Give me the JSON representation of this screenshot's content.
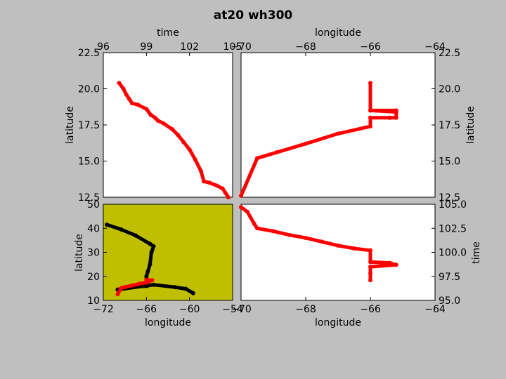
{
  "title": "at20 wh300",
  "colors": {
    "background": "#bfbfbf",
    "track": "#ff0000",
    "secondary_track": "#000000",
    "map_background": "#bfbf00"
  },
  "chart_data": [
    {
      "name": "latitude-vs-time",
      "type": "scatter",
      "xlabel": "time",
      "ylabel": "latitude",
      "xlim": [
        96,
        105
      ],
      "ylim": [
        12.5,
        22.5
      ],
      "xticks": [
        "96",
        "99",
        "102",
        "105"
      ],
      "yticks": [
        "12.5",
        "15.0",
        "17.5",
        "20.0",
        "22.5"
      ],
      "series": [
        {
          "color": "#ff0000",
          "x": [
            97.1,
            97.4,
            97.6,
            97.8,
            98.0,
            98.4,
            99.0,
            99.3,
            99.6,
            99.8,
            100.2,
            100.8,
            101.2,
            101.6,
            102.0,
            102.4,
            102.8,
            103.0,
            103.4,
            103.9,
            104.3,
            104.5,
            104.7
          ],
          "y": [
            20.4,
            20.0,
            19.6,
            19.3,
            19.0,
            18.9,
            18.6,
            18.2,
            18.0,
            17.8,
            17.6,
            17.2,
            16.8,
            16.3,
            15.8,
            15.1,
            14.3,
            13.6,
            13.5,
            13.3,
            13.1,
            12.8,
            12.5
          ]
        }
      ]
    },
    {
      "name": "latitude-vs-longitude",
      "type": "line",
      "xlabel": "longitude",
      "ylabel": "latitude",
      "xlim": [
        -70,
        -64
      ],
      "ylim": [
        12.5,
        22.5
      ],
      "xticks": [
        "−70",
        "−68",
        "−66",
        "−64"
      ],
      "yticks": [
        "12.5",
        "15.0",
        "17.5",
        "20.0",
        "22.5"
      ],
      "series": [
        {
          "color": "#ff0000",
          "x": [
            -70.0,
            -69.5,
            -68.9,
            -68.0,
            -67.0,
            -66.0,
            -66.0,
            -65.4,
            -65.4,
            -65.2,
            -65.2,
            -66.0,
            -66.0,
            -65.2,
            -65.2,
            -66.0,
            -66.0
          ],
          "y": [
            12.6,
            15.2,
            15.6,
            16.2,
            16.9,
            17.4,
            18.0,
            18.0,
            18.0,
            18.0,
            18.4,
            18.5,
            18.5,
            18.5,
            18.4,
            18.5,
            20.4
          ]
        }
      ]
    },
    {
      "name": "map-latitude-vs-longitude",
      "type": "scatter",
      "xlabel": "longitude",
      "ylabel": "latitude",
      "xlim": [
        -72,
        -54
      ],
      "ylim": [
        10,
        50
      ],
      "xticks": [
        "−72",
        "−66",
        "−60",
        "−54"
      ],
      "yticks": [
        "10",
        "20",
        "30",
        "40",
        "50"
      ],
      "series": [
        {
          "color": "#000000",
          "x": [
            -71.5,
            -69.5,
            -67.5,
            -65.5,
            -65.0,
            -65.3,
            -65.5,
            -65.8,
            -66.0,
            -66.0,
            -65.9,
            -68.0,
            -69.0,
            -70.0,
            -65.0,
            -62.0,
            -60.5,
            -59.5
          ],
          "y": [
            41.5,
            39.5,
            37.0,
            33.5,
            32.5,
            30.0,
            25.0,
            22.0,
            20.0,
            16.5,
            16.0,
            15.5,
            15.0,
            14.5,
            16.5,
            15.5,
            14.8,
            13.0
          ]
        },
        {
          "color": "#ff0000",
          "x": [
            -70.0,
            -69.5,
            -68.9,
            -68.0,
            -67.0,
            -66.0,
            -65.2,
            -66.0
          ],
          "y": [
            12.6,
            15.2,
            15.6,
            16.2,
            16.9,
            17.4,
            18.4,
            18.5
          ]
        }
      ]
    },
    {
      "name": "time-vs-longitude",
      "type": "line",
      "xlabel": "longitude",
      "ylabel": "time",
      "xlim": [
        -70,
        -64
      ],
      "ylim": [
        95,
        105
      ],
      "xticks": [
        "−70",
        "−68",
        "−66",
        "−64"
      ],
      "yticks": [
        "95.0",
        "97.5",
        "100.0",
        "102.5",
        "105.0"
      ],
      "series": [
        {
          "color": "#ff0000",
          "x": [
            -70.0,
            -69.8,
            -69.6,
            -69.5,
            -69.0,
            -68.5,
            -68.0,
            -67.5,
            -67.0,
            -66.5,
            -66.0,
            -66.0,
            -65.4,
            -65.2,
            -66.0,
            -66.0,
            -66.0
          ],
          "y": [
            104.7,
            104.2,
            103.0,
            102.5,
            102.2,
            101.8,
            101.5,
            101.1,
            100.7,
            100.4,
            100.2,
            99.0,
            98.9,
            98.7,
            98.5,
            97.8,
            97.1
          ]
        }
      ]
    }
  ]
}
